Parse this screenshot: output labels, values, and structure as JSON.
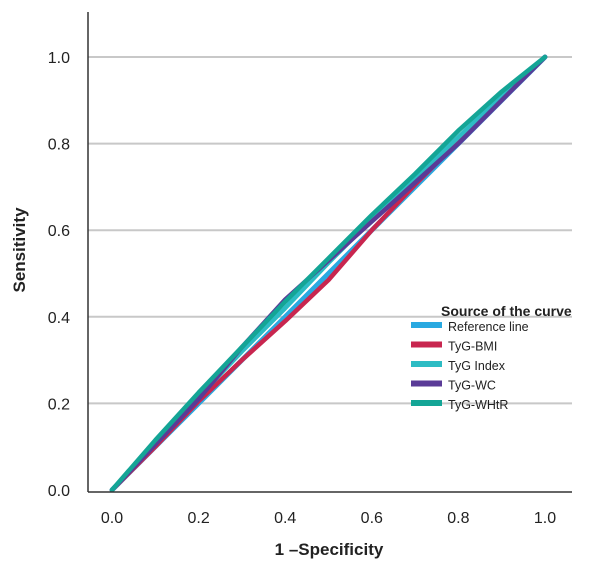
{
  "chart_data": {
    "type": "line",
    "title": "",
    "xlabel": "1 –Specificity",
    "ylabel": "Sensitivity",
    "xlim": [
      0.0,
      1.0
    ],
    "ylim": [
      0.0,
      1.0
    ],
    "x_ticks": [
      "0.0",
      "0.2",
      "0.4",
      "0.6",
      "0.8",
      "1.0"
    ],
    "y_ticks": [
      "0.0",
      "0.2",
      "0.4",
      "0.6",
      "0.8",
      "1.0"
    ],
    "grid": "horizontal",
    "legend": {
      "title": "Source of the curve",
      "position": "right-middle"
    },
    "series": [
      {
        "name": "Reference line",
        "color": "#29a9e1",
        "points": [
          [
            0.0,
            0.0
          ],
          [
            1.0,
            1.0
          ]
        ]
      },
      {
        "name": "TyG-BMI",
        "color": "#c8264f",
        "points": [
          [
            0.0,
            0.0
          ],
          [
            0.1,
            0.1
          ],
          [
            0.2,
            0.205
          ],
          [
            0.3,
            0.3
          ],
          [
            0.4,
            0.39
          ],
          [
            0.5,
            0.485
          ],
          [
            0.6,
            0.6
          ],
          [
            0.7,
            0.705
          ],
          [
            0.8,
            0.805
          ],
          [
            0.9,
            0.905
          ],
          [
            1.0,
            1.0
          ]
        ]
      },
      {
        "name": "TyG Index",
        "color": "#2dbcc4",
        "points": [
          [
            0.0,
            0.0
          ],
          [
            0.1,
            0.11
          ],
          [
            0.2,
            0.215
          ],
          [
            0.3,
            0.32
          ],
          [
            0.4,
            0.42
          ],
          [
            0.5,
            0.525
          ],
          [
            0.6,
            0.625
          ],
          [
            0.7,
            0.72
          ],
          [
            0.8,
            0.815
          ],
          [
            0.9,
            0.91
          ],
          [
            1.0,
            1.0
          ]
        ]
      },
      {
        "name": "TyG-WC",
        "color": "#5a3b97",
        "points": [
          [
            0.0,
            0.0
          ],
          [
            0.1,
            0.105
          ],
          [
            0.2,
            0.21
          ],
          [
            0.3,
            0.33
          ],
          [
            0.4,
            0.44
          ],
          [
            0.5,
            0.53
          ],
          [
            0.6,
            0.62
          ],
          [
            0.7,
            0.71
          ],
          [
            0.8,
            0.8
          ],
          [
            0.9,
            0.9
          ],
          [
            1.0,
            1.0
          ]
        ]
      },
      {
        "name": "TyG-WHtR",
        "color": "#14a596",
        "points": [
          [
            0.0,
            0.0
          ],
          [
            0.1,
            0.115
          ],
          [
            0.2,
            0.225
          ],
          [
            0.3,
            0.33
          ],
          [
            0.4,
            0.435
          ],
          [
            0.5,
            0.535
          ],
          [
            0.6,
            0.635
          ],
          [
            0.7,
            0.73
          ],
          [
            0.8,
            0.83
          ],
          [
            0.9,
            0.92
          ],
          [
            1.0,
            1.0
          ]
        ]
      }
    ]
  }
}
